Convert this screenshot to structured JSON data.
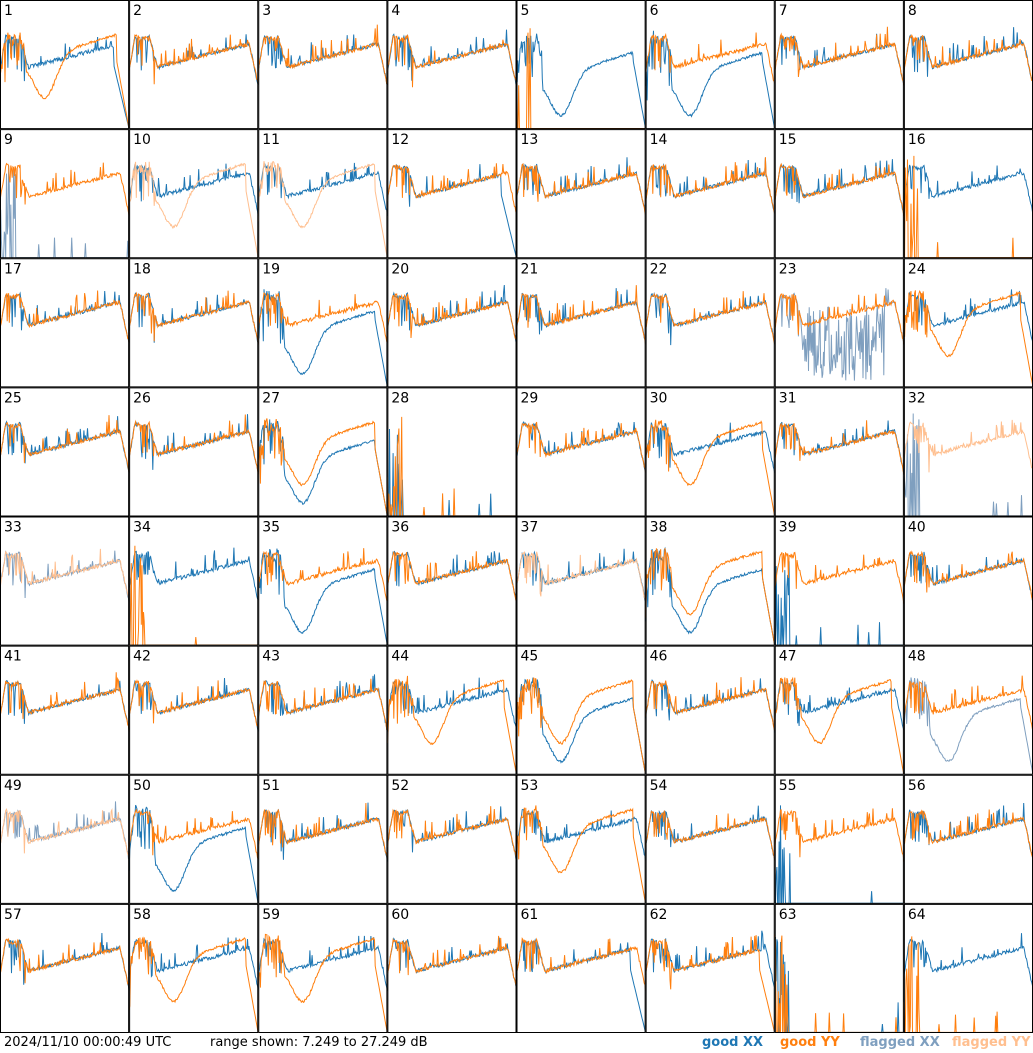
{
  "chart_data": {
    "type": "line",
    "layout": "8x8 grid of small spectra plots",
    "timestamp": "2024/11/10 00:00:49 UTC",
    "range_text": "range shown: 7.249 to 27.249 dB",
    "ylim": [
      7.249,
      27.249
    ],
    "legend": [
      {
        "name": "good XX",
        "color": "#1f77b4"
      },
      {
        "name": "good YY",
        "color": "#ff7f0e"
      },
      {
        "name": "flagged XX",
        "color": "#7f9fbf"
      },
      {
        "name": "flagged YY",
        "color": "#ffbf8f"
      }
    ],
    "tiles": [
      {
        "label": "1",
        "xx": "drop",
        "yy": "dip",
        "flag": ""
      },
      {
        "label": "2",
        "xx": "normal",
        "yy": "normal",
        "flag": ""
      },
      {
        "label": "3",
        "xx": "normal",
        "yy": "normal",
        "flag": ""
      },
      {
        "label": "4",
        "xx": "normal",
        "yy": "normal",
        "flag": ""
      },
      {
        "label": "5",
        "xx": "dip",
        "yy": "flat",
        "flag": ""
      },
      {
        "label": "6",
        "xx": "dip",
        "yy": "normal",
        "flag": ""
      },
      {
        "label": "7",
        "xx": "normal",
        "yy": "normal",
        "flag": ""
      },
      {
        "label": "8",
        "xx": "normal",
        "yy": "normal",
        "flag": ""
      },
      {
        "label": "9",
        "xx": "flat",
        "yy": "normal",
        "flag": "xx"
      },
      {
        "label": "10",
        "xx": "normal",
        "yy": "dip",
        "flag": "yy"
      },
      {
        "label": "11",
        "xx": "normal",
        "yy": "dip",
        "flag": "yy"
      },
      {
        "label": "12",
        "xx": "drop",
        "yy": "normal",
        "flag": ""
      },
      {
        "label": "13",
        "xx": "normal",
        "yy": "normal",
        "flag": ""
      },
      {
        "label": "14",
        "xx": "normal",
        "yy": "normal",
        "flag": ""
      },
      {
        "label": "15",
        "xx": "normal",
        "yy": "normal",
        "flag": ""
      },
      {
        "label": "16",
        "xx": "normal",
        "yy": "flat",
        "flag": ""
      },
      {
        "label": "17",
        "xx": "normal",
        "yy": "normal",
        "flag": ""
      },
      {
        "label": "18",
        "xx": "normal",
        "yy": "normal",
        "flag": ""
      },
      {
        "label": "19",
        "xx": "dip",
        "yy": "normal",
        "flag": ""
      },
      {
        "label": "20",
        "xx": "normal",
        "yy": "normal",
        "flag": ""
      },
      {
        "label": "21",
        "xx": "normal",
        "yy": "normal",
        "flag": ""
      },
      {
        "label": "22",
        "xx": "normal",
        "yy": "normal",
        "flag": ""
      },
      {
        "label": "23",
        "xx": "noisy",
        "yy": "normal",
        "flag": "xx"
      },
      {
        "label": "24",
        "xx": "normal",
        "yy": "dip",
        "flag": ""
      },
      {
        "label": "25",
        "xx": "normal",
        "yy": "normal",
        "flag": ""
      },
      {
        "label": "26",
        "xx": "normal",
        "yy": "normal",
        "flag": ""
      },
      {
        "label": "27",
        "xx": "dip",
        "yy": "dip",
        "flag": ""
      },
      {
        "label": "28",
        "xx": "flat",
        "yy": "flat",
        "flag": ""
      },
      {
        "label": "29",
        "xx": "normal",
        "yy": "normal",
        "flag": ""
      },
      {
        "label": "30",
        "xx": "normal",
        "yy": "dip",
        "flag": ""
      },
      {
        "label": "31",
        "xx": "normal",
        "yy": "normal",
        "flag": ""
      },
      {
        "label": "32",
        "xx": "flat",
        "yy": "normal",
        "flag": "both"
      },
      {
        "label": "33",
        "xx": "normal",
        "yy": "normal",
        "flag": "both"
      },
      {
        "label": "34",
        "xx": "normal",
        "yy": "flat",
        "flag": ""
      },
      {
        "label": "35",
        "xx": "dip",
        "yy": "normal",
        "flag": ""
      },
      {
        "label": "36",
        "xx": "normal",
        "yy": "normal",
        "flag": ""
      },
      {
        "label": "37",
        "xx": "normal",
        "yy": "normal",
        "flag": "yy"
      },
      {
        "label": "38",
        "xx": "dip",
        "yy": "dip",
        "flag": ""
      },
      {
        "label": "39",
        "xx": "flat",
        "yy": "normal",
        "flag": ""
      },
      {
        "label": "40",
        "xx": "normal",
        "yy": "normal",
        "flag": ""
      },
      {
        "label": "41",
        "xx": "normal",
        "yy": "normal",
        "flag": ""
      },
      {
        "label": "42",
        "xx": "normal",
        "yy": "normal",
        "flag": ""
      },
      {
        "label": "43",
        "xx": "normal",
        "yy": "normal",
        "flag": ""
      },
      {
        "label": "44",
        "xx": "normal",
        "yy": "dip",
        "flag": ""
      },
      {
        "label": "45",
        "xx": "dip",
        "yy": "dip",
        "flag": ""
      },
      {
        "label": "46",
        "xx": "normal",
        "yy": "normal",
        "flag": ""
      },
      {
        "label": "47",
        "xx": "normal",
        "yy": "dip",
        "flag": ""
      },
      {
        "label": "48",
        "xx": "dip",
        "yy": "normal",
        "flag": "xx"
      },
      {
        "label": "49",
        "xx": "normal",
        "yy": "normal",
        "flag": "both"
      },
      {
        "label": "50",
        "xx": "dip",
        "yy": "normal",
        "flag": ""
      },
      {
        "label": "51",
        "xx": "normal",
        "yy": "normal",
        "flag": ""
      },
      {
        "label": "52",
        "xx": "normal",
        "yy": "normal",
        "flag": ""
      },
      {
        "label": "53",
        "xx": "normal",
        "yy": "dip",
        "flag": ""
      },
      {
        "label": "54",
        "xx": "normal",
        "yy": "normal",
        "flag": ""
      },
      {
        "label": "55",
        "xx": "flat",
        "yy": "normal",
        "flag": ""
      },
      {
        "label": "56",
        "xx": "normal",
        "yy": "normal",
        "flag": ""
      },
      {
        "label": "57",
        "xx": "normal",
        "yy": "normal",
        "flag": ""
      },
      {
        "label": "58",
        "xx": "normal",
        "yy": "dip",
        "flag": ""
      },
      {
        "label": "59",
        "xx": "normal",
        "yy": "dip",
        "flag": ""
      },
      {
        "label": "60",
        "xx": "normal",
        "yy": "normal",
        "flag": ""
      },
      {
        "label": "61",
        "xx": "drop",
        "yy": "normal",
        "flag": ""
      },
      {
        "label": "62",
        "xx": "normal",
        "yy": "drop",
        "flag": ""
      },
      {
        "label": "63",
        "xx": "flat",
        "yy": "flat",
        "flag": ""
      },
      {
        "label": "64",
        "xx": "normal",
        "yy": "flat",
        "flag": ""
      }
    ]
  }
}
